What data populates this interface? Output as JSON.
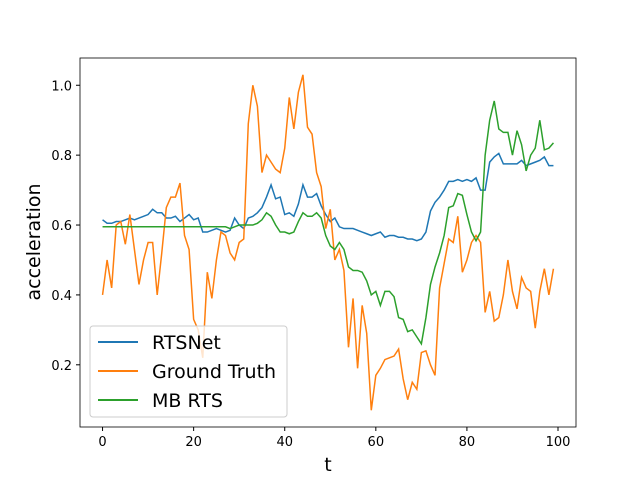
{
  "chart_data": {
    "type": "line",
    "xlabel": "t",
    "ylabel": "acceleration",
    "x": [
      0,
      1,
      2,
      3,
      4,
      5,
      6,
      7,
      8,
      9,
      10,
      11,
      12,
      13,
      14,
      15,
      16,
      17,
      18,
      19,
      20,
      21,
      22,
      23,
      24,
      25,
      26,
      27,
      28,
      29,
      30,
      31,
      32,
      33,
      34,
      35,
      36,
      37,
      38,
      39,
      40,
      41,
      42,
      43,
      44,
      45,
      46,
      47,
      48,
      49,
      50,
      51,
      52,
      53,
      54,
      55,
      56,
      57,
      58,
      59,
      60,
      61,
      62,
      63,
      64,
      65,
      66,
      67,
      68,
      69,
      70,
      71,
      72,
      73,
      74,
      75,
      76,
      77,
      78,
      79,
      80,
      81,
      82,
      83,
      84,
      85,
      86,
      87,
      88,
      89,
      90,
      91,
      92,
      93,
      94,
      95,
      96,
      97,
      98,
      99
    ],
    "series": [
      {
        "name": "RTSNet",
        "color": "#1f77b4",
        "values": [
          0.615,
          0.605,
          0.605,
          0.61,
          0.61,
          0.615,
          0.62,
          0.615,
          0.62,
          0.625,
          0.63,
          0.645,
          0.635,
          0.635,
          0.62,
          0.62,
          0.625,
          0.61,
          0.62,
          0.63,
          0.615,
          0.62,
          0.58,
          0.58,
          0.585,
          0.59,
          0.585,
          0.58,
          0.585,
          0.62,
          0.6,
          0.59,
          0.62,
          0.625,
          0.635,
          0.65,
          0.68,
          0.715,
          0.675,
          0.68,
          0.63,
          0.635,
          0.625,
          0.66,
          0.715,
          0.68,
          0.68,
          0.69,
          0.655,
          0.63,
          0.61,
          0.62,
          0.595,
          0.59,
          0.59,
          0.59,
          0.585,
          0.58,
          0.575,
          0.57,
          0.575,
          0.58,
          0.565,
          0.57,
          0.57,
          0.565,
          0.565,
          0.56,
          0.56,
          0.555,
          0.56,
          0.58,
          0.64,
          0.665,
          0.68,
          0.7,
          0.725,
          0.725,
          0.73,
          0.725,
          0.73,
          0.725,
          0.735,
          0.7,
          0.7,
          0.78,
          0.795,
          0.805,
          0.775,
          0.775,
          0.775,
          0.775,
          0.785,
          0.77,
          0.775,
          0.78,
          0.785,
          0.795,
          0.77,
          0.77
        ]
      },
      {
        "name": "Ground Truth",
        "color": "#ff7f0e",
        "values": [
          0.4,
          0.5,
          0.42,
          0.6,
          0.61,
          0.545,
          0.63,
          0.53,
          0.43,
          0.5,
          0.55,
          0.55,
          0.4,
          0.52,
          0.65,
          0.68,
          0.68,
          0.72,
          0.57,
          0.53,
          0.33,
          0.3,
          0.22,
          0.465,
          0.39,
          0.5,
          0.58,
          0.57,
          0.52,
          0.5,
          0.55,
          0.56,
          0.89,
          1.0,
          0.94,
          0.75,
          0.8,
          0.78,
          0.76,
          0.75,
          0.82,
          0.965,
          0.875,
          0.98,
          1.03,
          0.88,
          0.86,
          0.75,
          0.71,
          0.59,
          0.645,
          0.5,
          0.53,
          0.47,
          0.25,
          0.39,
          0.19,
          0.37,
          0.29,
          0.07,
          0.17,
          0.19,
          0.215,
          0.22,
          0.225,
          0.245,
          0.16,
          0.1,
          0.15,
          0.13,
          0.235,
          0.24,
          0.2,
          0.17,
          0.42,
          0.49,
          0.56,
          0.55,
          0.625,
          0.465,
          0.5,
          0.55,
          0.57,
          0.55,
          0.35,
          0.41,
          0.325,
          0.335,
          0.4,
          0.5,
          0.41,
          0.36,
          0.45,
          0.42,
          0.41,
          0.305,
          0.41,
          0.475,
          0.4,
          0.475
        ]
      },
      {
        "name": "MB RTS",
        "color": "#2ca02c",
        "values": [
          0.595,
          0.595,
          0.595,
          0.595,
          0.595,
          0.595,
          0.595,
          0.595,
          0.595,
          0.595,
          0.595,
          0.595,
          0.595,
          0.595,
          0.595,
          0.595,
          0.595,
          0.595,
          0.595,
          0.595,
          0.595,
          0.595,
          0.595,
          0.595,
          0.595,
          0.595,
          0.595,
          0.595,
          0.59,
          0.595,
          0.6,
          0.6,
          0.6,
          0.6,
          0.605,
          0.615,
          0.635,
          0.625,
          0.6,
          0.58,
          0.58,
          0.575,
          0.58,
          0.61,
          0.635,
          0.625,
          0.625,
          0.635,
          0.62,
          0.57,
          0.54,
          0.53,
          0.55,
          0.53,
          0.48,
          0.47,
          0.47,
          0.465,
          0.44,
          0.4,
          0.41,
          0.37,
          0.41,
          0.41,
          0.395,
          0.335,
          0.33,
          0.295,
          0.3,
          0.28,
          0.26,
          0.335,
          0.43,
          0.48,
          0.52,
          0.57,
          0.65,
          0.655,
          0.69,
          0.685,
          0.63,
          0.58,
          0.555,
          0.58,
          0.8,
          0.9,
          0.955,
          0.875,
          0.865,
          0.865,
          0.8,
          0.87,
          0.83,
          0.755,
          0.8,
          0.82,
          0.9,
          0.815,
          0.82,
          0.835
        ]
      }
    ],
    "xlim": [
      -4.95,
      103.95
    ],
    "xticks": [
      0,
      20,
      40,
      60,
      80,
      100
    ],
    "ylim": [
      0.022,
      1.078
    ],
    "yticks": [
      0.2,
      0.4,
      0.6,
      0.8,
      {
        "value": 1,
        "label": "1.0"
      }
    ],
    "grid": false,
    "legend": "lower left"
  }
}
